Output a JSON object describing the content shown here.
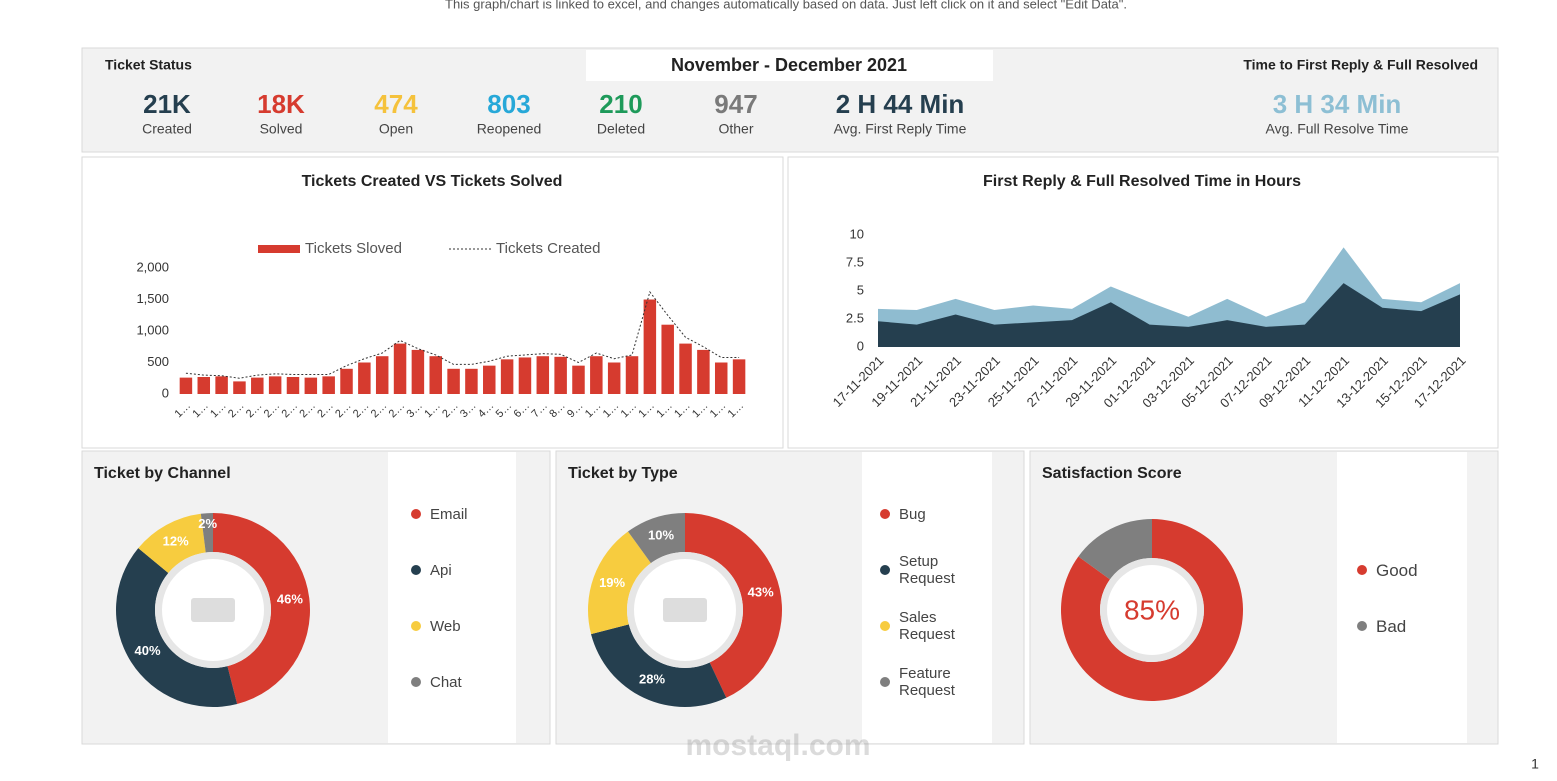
{
  "note": "This graph/chart is linked to excel, and changes automatically based on data. Just left click on it and select \"Edit Data\".",
  "header": {
    "left_title": "Ticket Status",
    "period": "November - December 2021",
    "right_title": "Time to First Reply & Full Resolved"
  },
  "kpis": [
    {
      "value": "21K",
      "label": "Created",
      "color": "#253f4f"
    },
    {
      "value": "18K",
      "label": "Solved",
      "color": "#d63b2f"
    },
    {
      "value": "474",
      "label": "Open",
      "color": "#f5c23c"
    },
    {
      "value": "803",
      "label": "Reopened",
      "color": "#27a8d8"
    },
    {
      "value": "210",
      "label": "Deleted",
      "color": "#1e9a5a"
    },
    {
      "value": "947",
      "label": "Other",
      "color": "#7a7a7a"
    },
    {
      "value": "2 H 44 Min",
      "label": "Avg. First Reply Time",
      "color": "#253f4f"
    },
    {
      "value": "3 H 34 Min",
      "label": "Avg. Full Resolve Time",
      "color": "#8dbfd4"
    }
  ],
  "watermark": "mostaql.com",
  "page_number": "1",
  "chart_data": [
    {
      "type": "bar",
      "title": "Tickets Created  VS Tickets Solved",
      "categories": [
        "1…",
        "1…",
        "1…",
        "2…",
        "2…",
        "2…",
        "2…",
        "2…",
        "2…",
        "2…",
        "2…",
        "2…",
        "2…",
        "3…",
        "1…",
        "2…",
        "3…",
        "4…",
        "5…",
        "6…",
        "7…",
        "8…",
        "9…",
        "1…",
        "1…",
        "1…",
        "1…",
        "1…",
        "1…",
        "1…",
        "1…",
        "1…"
      ],
      "series": [
        {
          "name": "Tickets Sloved",
          "type": "bar",
          "color": "#d63b2f",
          "values": [
            260,
            270,
            280,
            200,
            260,
            280,
            270,
            260,
            280,
            400,
            500,
            600,
            800,
            700,
            600,
            400,
            400,
            450,
            550,
            580,
            600,
            590,
            450,
            600,
            500,
            600,
            1500,
            1100,
            800,
            700,
            500,
            550
          ]
        },
        {
          "name": "Tickets Created",
          "type": "line",
          "color": "#333333",
          "values": [
            330,
            300,
            290,
            250,
            300,
            320,
            310,
            310,
            310,
            450,
            560,
            650,
            850,
            720,
            620,
            470,
            470,
            520,
            600,
            620,
            640,
            630,
            500,
            650,
            560,
            620,
            1620,
            1250,
            900,
            750,
            580,
            580
          ]
        }
      ],
      "ylim": [
        0,
        2000
      ],
      "yticks": [
        0,
        500,
        {
          "value": 1000,
          "label": "1,000"
        },
        {
          "value": 1500,
          "label": "1,500"
        },
        {
          "value": 2000,
          "label": "2,000"
        }
      ],
      "legend": "top"
    },
    {
      "type": "area",
      "title": "First Reply & Full Resolved Time in Hours",
      "categories": [
        "17-11-2021",
        "19-11-2021",
        "21-11-2021",
        "23-11-2021",
        "25-11-2021",
        "27-11-2021",
        "29-11-2021",
        "01-12-2021",
        "03-12-2021",
        "05-12-2021",
        "07-12-2021",
        "09-12-2021",
        "11-12-2021",
        "13-12-2021",
        "15-12-2021",
        "17-12-2021"
      ],
      "series": [
        {
          "name": "Full Resolved Time",
          "color": "#8fbcd0",
          "values": [
            3.4,
            3.3,
            4.3,
            3.3,
            3.7,
            3.4,
            5.4,
            4.0,
            2.7,
            4.3,
            2.7,
            4.0,
            8.9,
            4.3,
            4.0,
            5.7
          ]
        },
        {
          "name": "First Reply Time",
          "color": "#253f4f",
          "values": [
            2.3,
            2.0,
            2.9,
            2.0,
            2.2,
            2.4,
            4.0,
            2.0,
            1.8,
            2.4,
            1.8,
            2.0,
            5.7,
            3.5,
            3.2,
            4.7
          ]
        }
      ],
      "ylim": [
        0,
        10
      ],
      "yticks": [
        0,
        2.5,
        5,
        7.5,
        10
      ]
    },
    {
      "type": "donut",
      "title": "Ticket by Channel",
      "categories": [
        "Email",
        "Api",
        "Web",
        "Chat"
      ],
      "values": [
        46,
        40,
        12,
        2
      ],
      "value_labels": [
        "46%",
        "40%",
        "12%",
        "2%"
      ],
      "colors": [
        "#d63b2f",
        "#253f4f",
        "#f7cc3f",
        "#7f7f7f"
      ]
    },
    {
      "type": "donut",
      "title": "Ticket by Type",
      "categories": [
        "Bug",
        "Setup Request",
        "Sales Request",
        "Feature Request"
      ],
      "values": [
        43,
        28,
        19,
        10
      ],
      "value_labels": [
        "43%",
        "28%",
        "19%",
        "10%"
      ],
      "colors": [
        "#d63b2f",
        "#253f4f",
        "#f7cc3f",
        "#7f7f7f"
      ]
    },
    {
      "type": "donut",
      "title": "Satisfaction Score",
      "categories": [
        "Good",
        "Bad"
      ],
      "values": [
        85,
        15
      ],
      "center_label": "85%",
      "colors": [
        "#d63b2f",
        "#7f7f7f"
      ]
    }
  ]
}
